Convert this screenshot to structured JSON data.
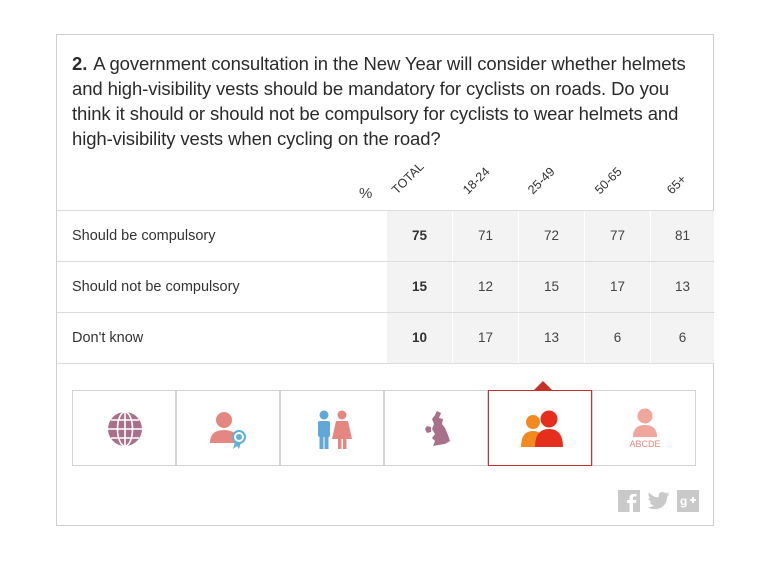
{
  "question": {
    "number": "2.",
    "text": "A government consultation in the New Year will consider whether helmets and high-visibility vests should be mandatory for cyclists on roads. Do you think it should or should not be compulsory for cyclists to wear helmets and high-visibility vests when cycling on the road?"
  },
  "table": {
    "unit_label": "%",
    "columns": [
      "TOTAL",
      "18-24",
      "25-49",
      "50-65",
      "65+"
    ],
    "rows": [
      {
        "label": "Should be compulsory",
        "values": [
          "75",
          "71",
          "72",
          "77",
          "81"
        ]
      },
      {
        "label": "Should not be compulsory",
        "values": [
          "15",
          "12",
          "15",
          "17",
          "13"
        ]
      },
      {
        "label": "Don't know",
        "values": [
          "10",
          "17",
          "13",
          "6",
          "6"
        ]
      }
    ]
  },
  "chart_data": {
    "type": "table",
    "title": "A government consultation in the New Year will consider whether helmets and high-visibility vests should be mandatory for cyclists on roads. Do you think it should or should not be compulsory for cyclists to wear helmets and high-visibility vests when cycling on the road?",
    "unit": "%",
    "categories": [
      "TOTAL",
      "18-24",
      "25-49",
      "50-65",
      "65+"
    ],
    "series": [
      {
        "name": "Should be compulsory",
        "values": [
          75,
          71,
          72,
          77,
          81
        ]
      },
      {
        "name": "Should not be compulsory",
        "values": [
          15,
          12,
          15,
          17,
          13
        ]
      },
      {
        "name": "Don't know",
        "values": [
          10,
          17,
          13,
          6,
          6
        ]
      }
    ]
  },
  "filters": {
    "active": "age-icon",
    "tabs": [
      {
        "icon": "globe-icon"
      },
      {
        "icon": "social-grade-icon"
      },
      {
        "icon": "gender-icon"
      },
      {
        "icon": "uk-region-icon"
      },
      {
        "icon": "age-icon"
      },
      {
        "icon": "social-class-icon",
        "caption": "ABCDE"
      }
    ]
  },
  "social": {
    "icons": [
      "facebook-icon",
      "twitter-icon",
      "google-plus-icon"
    ]
  },
  "colors": {
    "accent": "#c8302a",
    "total_cell_bg": "#f3f3f3",
    "age_front": "#e62e1c",
    "age_back": "#f28a1f",
    "icon_pink": "#e48780",
    "icon_purple": "#a8708b",
    "social_grey": "#c9c9c9"
  }
}
